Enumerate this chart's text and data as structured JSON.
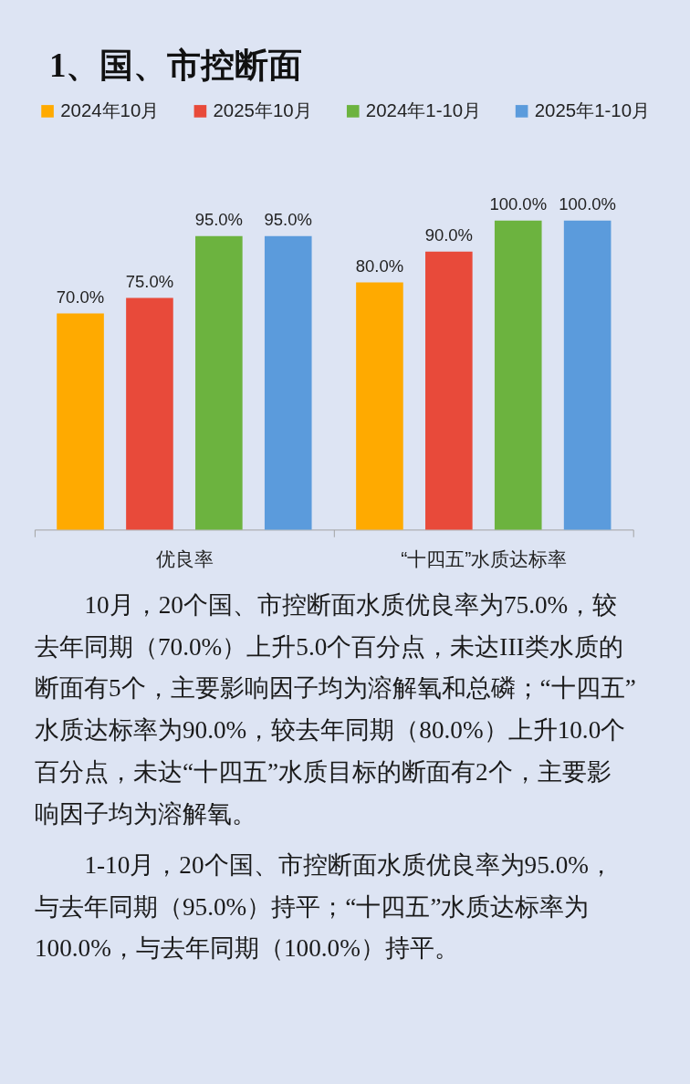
{
  "chart_data": {
    "type": "bar",
    "title": "1、国、市控断面",
    "categories": [
      "优良率",
      "“十四五”水质达标率"
    ],
    "series": [
      {
        "name": "2024年10月",
        "color": "#ffaa00",
        "values": [
          70.0,
          80.0
        ],
        "value_labels": [
          "70.0%",
          "80.0%"
        ]
      },
      {
        "name": "2025年10月",
        "color": "#e84a3a",
        "values": [
          75.0,
          90.0
        ],
        "value_labels": [
          "75.0%",
          "90.0%"
        ]
      },
      {
        "name": "2024年1-10月",
        "color": "#6cb33f",
        "values": [
          95.0,
          100.0
        ],
        "value_labels": [
          "95.0%",
          "100.0%"
        ]
      },
      {
        "name": "2025年1-10月",
        "color": "#5b9bdc",
        "values": [
          95.0,
          100.0
        ],
        "value_labels": [
          "95.0%",
          "100.0%"
        ]
      }
    ],
    "legend": "top",
    "annotations": [
      "10月，20个国、市控断面水质优良率为75.0%，较去年同期（70.0%）上升5.0个百分点，未达III类水质的断面有5个，主要影响因子均为溶解氧和总磷；“十四五”水质达标率为90.0%，较去年同期（80.0%）上升10.0个百分点，未达“十四五”水质目标的断面有2个，主要影响因子均为溶解氧。",
      "1-10月，20个国、市控断面水质优良率为95.0%，与去年同期（95.0%）持平；“十四五”水质达标率为100.0%，与去年同期（100.0%）持平。"
    ]
  }
}
